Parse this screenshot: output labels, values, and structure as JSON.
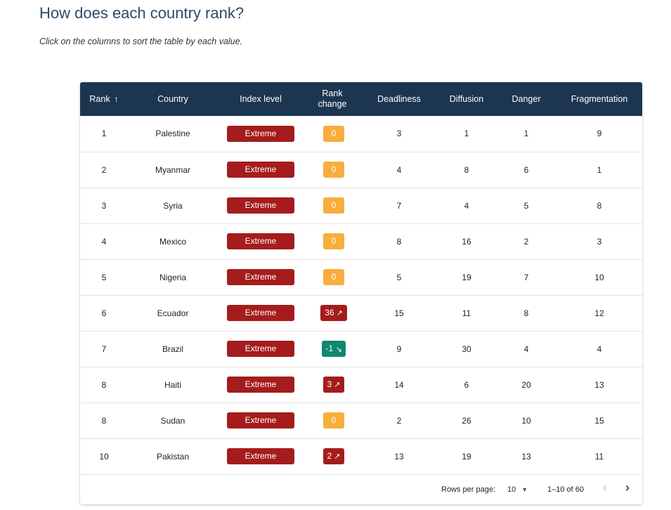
{
  "header": {
    "title": "How does each country rank?",
    "subtitle": "Click on the columns to sort the table by each value."
  },
  "colors": {
    "header_bg": "#1c3550",
    "extreme": "#a51c1c",
    "neutral_change": "#f8ae3c",
    "improve_change": "#12866f",
    "worsen_change": "#a51c1c"
  },
  "table": {
    "columns": [
      "Rank",
      "Country",
      "Index level",
      "Rank change",
      "Deadliness",
      "Diffusion",
      "Danger",
      "Fragmentation"
    ],
    "sort_arrow": "↑",
    "rows": [
      {
        "rank": "1",
        "country": "Palestine",
        "level": "Extreme",
        "change": "0",
        "change_dir": "neutral",
        "deadliness": "3",
        "diffusion": "1",
        "danger": "1",
        "fragmentation": "9"
      },
      {
        "rank": "2",
        "country": "Myanmar",
        "level": "Extreme",
        "change": "0",
        "change_dir": "neutral",
        "deadliness": "4",
        "diffusion": "8",
        "danger": "6",
        "fragmentation": "1"
      },
      {
        "rank": "3",
        "country": "Syria",
        "level": "Extreme",
        "change": "0",
        "change_dir": "neutral",
        "deadliness": "7",
        "diffusion": "4",
        "danger": "5",
        "fragmentation": "8"
      },
      {
        "rank": "4",
        "country": "Mexico",
        "level": "Extreme",
        "change": "0",
        "change_dir": "neutral",
        "deadliness": "8",
        "diffusion": "16",
        "danger": "2",
        "fragmentation": "3"
      },
      {
        "rank": "5",
        "country": "Nigeria",
        "level": "Extreme",
        "change": "0",
        "change_dir": "neutral",
        "deadliness": "5",
        "diffusion": "19",
        "danger": "7",
        "fragmentation": "10"
      },
      {
        "rank": "6",
        "country": "Ecuador",
        "level": "Extreme",
        "change": "36",
        "change_dir": "up",
        "deadliness": "15",
        "diffusion": "11",
        "danger": "8",
        "fragmentation": "12"
      },
      {
        "rank": "7",
        "country": "Brazil",
        "level": "Extreme",
        "change": "-1",
        "change_dir": "down",
        "deadliness": "9",
        "diffusion": "30",
        "danger": "4",
        "fragmentation": "4"
      },
      {
        "rank": "8",
        "country": "Haiti",
        "level": "Extreme",
        "change": "3",
        "change_dir": "up",
        "deadliness": "14",
        "diffusion": "6",
        "danger": "20",
        "fragmentation": "13"
      },
      {
        "rank": "8",
        "country": "Sudan",
        "level": "Extreme",
        "change": "0",
        "change_dir": "neutral",
        "deadliness": "2",
        "diffusion": "26",
        "danger": "10",
        "fragmentation": "15"
      },
      {
        "rank": "10",
        "country": "Pakistan",
        "level": "Extreme",
        "change": "2",
        "change_dir": "up",
        "deadliness": "13",
        "diffusion": "19",
        "danger": "13",
        "fragmentation": "11"
      }
    ]
  },
  "pagination": {
    "rows_per_page_label": "Rows per page:",
    "rows_per_page_value": "10",
    "range_text": "1–10 of 60",
    "prev_icon": "chevron-left-icon",
    "next_icon": "chevron-right-icon"
  }
}
